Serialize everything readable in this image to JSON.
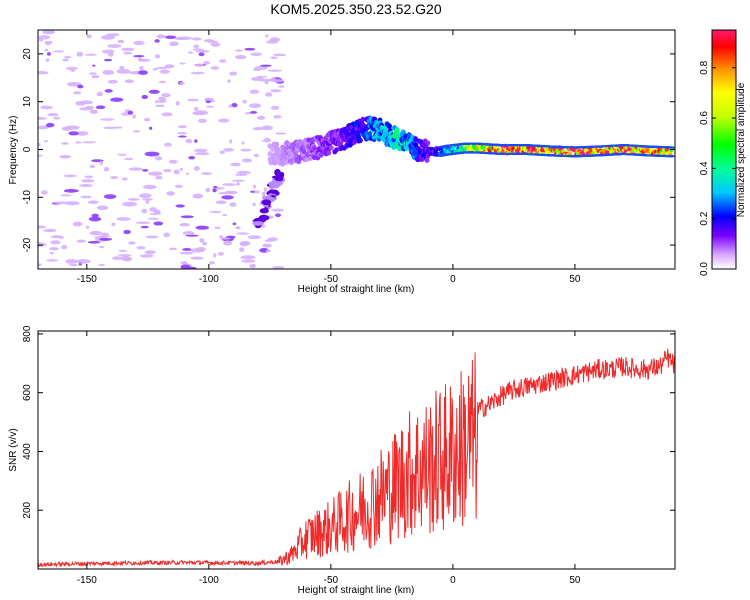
{
  "figure_title": "KOM5.2025.350.23.52.G20",
  "chart_data": [
    {
      "type": "heatmap",
      "title": "KOM5.2025.350.23.52.G20",
      "xlabel": "Height of straight line (km)",
      "ylabel": "Frequency (Hz)",
      "xlim": [
        -170,
        91
      ],
      "ylim": [
        -25,
        25
      ],
      "xticks": [
        -150,
        -100,
        -50,
        0,
        50
      ],
      "xtick_labels": [
        "-150",
        "-100",
        "-50",
        "0",
        "50"
      ],
      "yticks": [
        -20,
        -10,
        0,
        10,
        20
      ],
      "ytick_labels": [
        "-20",
        "-10",
        "0",
        "10",
        "20"
      ],
      "colorbar": {
        "label": "Normalized spectral amplitude",
        "range": [
          0,
          0.95
        ],
        "ticks": [
          0.0,
          0.2,
          0.4,
          0.6,
          0.8
        ],
        "tick_labels": [
          "0.0",
          "0.2",
          "0.4",
          "0.6",
          "0.8"
        ]
      },
      "ridge": {
        "x": [
          -72,
          -65,
          -58,
          -52,
          -46,
          -42,
          -38,
          -34,
          -30,
          -26,
          -22,
          -18,
          -14,
          -10,
          -6,
          -3,
          0,
          5,
          10,
          20,
          30,
          40,
          50,
          60,
          70,
          80,
          90
        ],
        "y": [
          -1.0,
          -0.5,
          0.0,
          1.0,
          2.0,
          3.0,
          4.0,
          4.5,
          4.0,
          3.0,
          2.0,
          1.0,
          0.0,
          -0.5,
          -0.5,
          -0.2,
          0.0,
          0.3,
          0.3,
          0.0,
          0.0,
          -0.3,
          -0.5,
          -0.3,
          0.0,
          -0.3,
          -0.5
        ],
        "amplitude": [
          0.05,
          0.08,
          0.1,
          0.12,
          0.15,
          0.18,
          0.2,
          0.25,
          0.3,
          0.35,
          0.38,
          0.3,
          0.2,
          0.15,
          0.2,
          0.3,
          0.35,
          0.5,
          0.7,
          0.85,
          0.9,
          0.85,
          0.9,
          0.85,
          0.9,
          0.8,
          0.7
        ]
      }
    },
    {
      "type": "line",
      "xlabel": "Height of straight line (km)",
      "ylabel": "SNR (v/v)",
      "xlim": [
        -170,
        91
      ],
      "ylim": [
        0,
        810
      ],
      "xticks": [
        -150,
        -100,
        -50,
        0,
        50
      ],
      "xtick_labels": [
        "-150",
        "-100",
        "-50",
        "0",
        "50"
      ],
      "yticks": [
        200,
        400,
        600,
        800
      ],
      "ytick_labels": [
        "200",
        "400",
        "600",
        "800"
      ],
      "color": "#ee2b2b",
      "envelope": {
        "x": [
          -170,
          -140,
          -110,
          -80,
          -72,
          -66,
          -60,
          -55,
          -50,
          -45,
          -40,
          -35,
          -30,
          -25,
          -20,
          -15,
          -10,
          -5,
          0,
          5,
          10,
          15,
          20,
          25,
          30,
          35,
          40,
          45,
          50,
          55,
          60,
          65,
          70,
          75,
          80,
          85,
          88,
          91
        ],
        "y": [
          15,
          20,
          22,
          20,
          25,
          60,
          130,
          150,
          170,
          200,
          230,
          260,
          300,
          330,
          380,
          410,
          420,
          450,
          470,
          510,
          540,
          560,
          590,
          610,
          620,
          630,
          640,
          650,
          660,
          670,
          680,
          680,
          690,
          680,
          680,
          690,
          720,
          690
        ]
      }
    }
  ]
}
